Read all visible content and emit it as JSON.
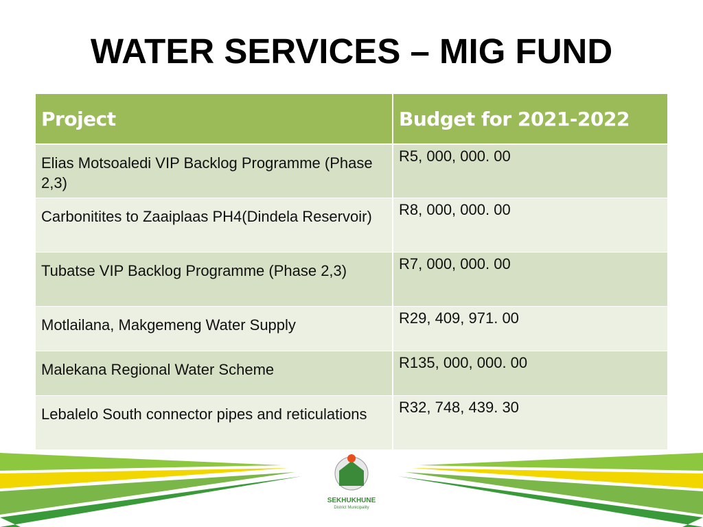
{
  "header": {
    "title": "WATER SERVICES – MIG FUND"
  },
  "table": {
    "columns": [
      "Project",
      "Budget for 2021-2022"
    ],
    "rows": [
      [
        "Elias Motsoaledi VIP Backlog Programme (Phase 2,3)",
        "R5, 000, 000. 00"
      ],
      [
        "Carbonitites to Zaaiplaas PH4(Dindela Reservoir)",
        "R8, 000, 000. 00"
      ],
      [
        "Tubatse VIP Backlog Programme (Phase 2,3)",
        "R7, 000, 000. 00"
      ],
      [
        "Motlailana, Makgemeng Water Supply",
        "R29, 409, 971. 00"
      ],
      [
        "Malekana Regional Water Scheme",
        "R135, 000, 000. 00"
      ],
      [
        "Lebalelo South connector pipes and reticulations",
        "R32, 748, 439. 30"
      ]
    ]
  },
  "logo": {
    "name": "SEKHUKHUNE",
    "subtitle": "District Municipality"
  }
}
